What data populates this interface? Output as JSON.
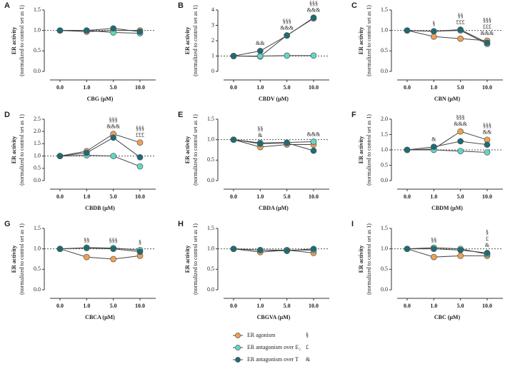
{
  "chart_data": [
    {
      "type": "line",
      "title": "A",
      "ylabel": [
        "ER activity",
        "(normalized to control set as 1)"
      ],
      "xlabel": "CBG (μM)",
      "categories": [
        "0.0",
        "1.0",
        "5.0",
        "10.0"
      ],
      "ylim": [
        0,
        1.5
      ],
      "yticks": [
        {
          "value": 0,
          "label": "0.0"
        },
        {
          "value": 0.5,
          "label": "0.5"
        },
        {
          "value": 1,
          "label": "1.0"
        },
        {
          "value": 1.5,
          "label": "1.5"
        }
      ],
      "refline": 1,
      "series": [
        {
          "name": "ER agonism",
          "symbol": "§",
          "color": "#f0a150",
          "values": [
            1,
            0.97,
            1.0,
            1.0
          ]
        },
        {
          "name": "ER antagonism over E₂",
          "symbol": "£",
          "color": "#5fd9c2",
          "values": [
            1,
            1.0,
            0.95,
            0.93
          ]
        },
        {
          "name": "ER antagonism over T",
          "symbol": "&",
          "color": "#1b6c78",
          "values": [
            1,
            1.0,
            1.05,
            0.97
          ]
        }
      ],
      "annotations": [
        [],
        [],
        [],
        []
      ]
    },
    {
      "type": "line",
      "title": "B",
      "ylabel": [
        "ER activity",
        "(normalized to control set as 1)"
      ],
      "xlabel": "CBDV (μM)",
      "categories": [
        "0.0",
        "1.0",
        "5.0",
        "10.0"
      ],
      "ylim": [
        0,
        4
      ],
      "yticks": [
        0,
        1,
        2,
        3,
        4
      ],
      "refline": 1,
      "series": [
        {
          "color": "#f0a150",
          "values": [
            1,
            0.97,
            2.35,
            3.45
          ]
        },
        {
          "color": "#5fd9c2",
          "values": [
            1,
            1.0,
            1.03,
            1.03
          ]
        },
        {
          "color": "#1b6c78",
          "values": [
            1,
            1.33,
            2.33,
            3.5
          ]
        }
      ],
      "annotations": [
        [],
        [
          "&&"
        ],
        [
          "§§§",
          "&&&"
        ],
        [
          "§§§",
          "&&&"
        ]
      ]
    },
    {
      "type": "line",
      "title": "C",
      "ylabel": [
        "ER activity",
        "(normalized to control set as 1)"
      ],
      "xlabel": "CBN (μM)",
      "categories": [
        "0.0",
        "1.0",
        "5.0",
        "10.0"
      ],
      "ylim": [
        0,
        1.5
      ],
      "yticks": [
        {
          "value": 0,
          "label": "0.0"
        },
        {
          "value": 0.5,
          "label": "0.5"
        },
        {
          "value": 1,
          "label": "1.0"
        },
        {
          "value": 1.5,
          "label": "1.5"
        }
      ],
      "refline": 1,
      "series": [
        {
          "color": "#f0a150",
          "values": [
            1,
            0.85,
            0.8,
            0.75
          ]
        },
        {
          "color": "#5fd9c2",
          "values": [
            1,
            0.98,
            1.0,
            0.67
          ]
        },
        {
          "color": "#1b6c78",
          "values": [
            1,
            0.98,
            1.02,
            0.7
          ]
        }
      ],
      "annotations": [
        [],
        [
          "§"
        ],
        [
          "§§",
          "£££"
        ],
        [
          "§§§",
          "£££",
          "&&&"
        ]
      ]
    },
    {
      "type": "line",
      "title": "D",
      "ylabel": [
        "ER activity",
        "(normalized to control set as 1)"
      ],
      "xlabel": "CBDB (μM)",
      "categories": [
        "0.0",
        "1.0",
        "5.0",
        "10.0"
      ],
      "ylim": [
        0,
        2.5
      ],
      "yticks": [
        {
          "value": 0,
          "label": "0.0"
        },
        {
          "value": 0.5,
          "label": "0.5"
        },
        {
          "value": 1,
          "label": "1.0"
        },
        {
          "value": 1.5,
          "label": "1.5"
        },
        {
          "value": 2,
          "label": "2.0"
        },
        {
          "value": 2.5,
          "label": "2.5"
        }
      ],
      "refline": 1,
      "series": [
        {
          "color": "#f0a150",
          "values": [
            1,
            1.2,
            1.9,
            1.55
          ]
        },
        {
          "color": "#5fd9c2",
          "values": [
            1,
            1.03,
            1.0,
            0.58
          ]
        },
        {
          "color": "#1b6c78",
          "values": [
            1,
            1.13,
            1.75,
            0.95
          ]
        }
      ],
      "annotations": [
        [],
        [],
        [
          "§§§",
          "&&&"
        ],
        [
          "§§§",
          "£££"
        ]
      ]
    },
    {
      "type": "line",
      "title": "E",
      "ylabel": [
        "ER activity",
        "(normalized to control set as 1)"
      ],
      "xlabel": "CBDA (μM)",
      "categories": [
        "0.0",
        "1.0",
        "5.0",
        "10.0"
      ],
      "ylim": [
        0,
        1.5
      ],
      "yticks": [
        {
          "value": 0,
          "label": "0.0"
        },
        {
          "value": 0.5,
          "label": "0.5"
        },
        {
          "value": 1,
          "label": "1.0"
        },
        {
          "value": 1.5,
          "label": "1.5"
        }
      ],
      "refline": 1,
      "series": [
        {
          "color": "#f0a150",
          "values": [
            1,
            0.82,
            0.88,
            0.88
          ]
        },
        {
          "color": "#5fd9c2",
          "values": [
            1,
            0.92,
            0.93,
            0.95
          ]
        },
        {
          "color": "#1b6c78",
          "values": [
            1,
            0.9,
            0.92,
            0.73
          ]
        }
      ],
      "annotations": [
        [],
        [
          "§§",
          "&"
        ],
        [],
        [
          "&&&"
        ]
      ]
    },
    {
      "type": "line",
      "title": "F",
      "ylabel": [
        "ER activity",
        "(normalized to control set as 1)"
      ],
      "xlabel": "CBDM (μM)",
      "categories": [
        "0.0",
        "1.0",
        "5.0",
        "10.0"
      ],
      "ylim": [
        0,
        2
      ],
      "yticks": [
        {
          "value": 0,
          "label": "0.0"
        },
        {
          "value": 0.5,
          "label": "0.5"
        },
        {
          "value": 1,
          "label": "1.0"
        },
        {
          "value": 1.5,
          "label": "1.5"
        },
        {
          "value": 2,
          "label": "2.0"
        }
      ],
      "refline": 1,
      "series": [
        {
          "color": "#f0a150",
          "values": [
            1,
            1.03,
            1.6,
            1.33
          ]
        },
        {
          "color": "#5fd9c2",
          "values": [
            1,
            1.0,
            0.96,
            0.92
          ]
        },
        {
          "color": "#1b6c78",
          "values": [
            1,
            1.1,
            1.28,
            1.17
          ]
        }
      ],
      "annotations": [
        [],
        [
          "&"
        ],
        [
          "§§§",
          "&&&"
        ],
        [
          "§§§",
          "&&"
        ]
      ]
    },
    {
      "type": "line",
      "title": "G",
      "ylabel": [
        "ER activity",
        "(normalized to control set as 1)"
      ],
      "xlabel": "CBCA (μM)",
      "categories": [
        "0.0",
        "1.0",
        "5.0",
        "10.0"
      ],
      "ylim": [
        0,
        1.5
      ],
      "yticks": [
        {
          "value": 0,
          "label": "0.0"
        },
        {
          "value": 0.5,
          "label": "0.5"
        },
        {
          "value": 1,
          "label": "1.0"
        },
        {
          "value": 1.5,
          "label": "1.5"
        }
      ],
      "refline": 1,
      "series": [
        {
          "color": "#f0a150",
          "values": [
            1,
            0.8,
            0.75,
            0.83
          ]
        },
        {
          "color": "#5fd9c2",
          "values": [
            1,
            1.03,
            1.02,
            0.97
          ]
        },
        {
          "color": "#1b6c78",
          "values": [
            1,
            1.02,
            1.0,
            0.93
          ]
        }
      ],
      "annotations": [
        [],
        [
          "§§"
        ],
        [
          "§§§"
        ],
        [
          "§"
        ]
      ]
    },
    {
      "type": "line",
      "title": "H",
      "ylabel": [
        "ER activity",
        "(normalized to control set as 1)"
      ],
      "xlabel": "CBGVA (μM)",
      "categories": [
        "0.0",
        "1.0",
        "5.0",
        "10.0"
      ],
      "ylim": [
        0,
        1.5
      ],
      "yticks": [
        {
          "value": 0,
          "label": "0.0"
        },
        {
          "value": 0.5,
          "label": "0.5"
        },
        {
          "value": 1,
          "label": "1.0"
        },
        {
          "value": 1.5,
          "label": "1.5"
        }
      ],
      "refline": 1,
      "series": [
        {
          "color": "#f0a150",
          "values": [
            1,
            0.92,
            0.97,
            0.9
          ]
        },
        {
          "color": "#5fd9c2",
          "values": [
            1,
            0.97,
            0.97,
            0.97
          ]
        },
        {
          "color": "#1b6c78",
          "values": [
            1,
            0.97,
            0.95,
            1.0
          ]
        }
      ],
      "annotations": [
        [],
        [],
        [],
        []
      ]
    },
    {
      "type": "line",
      "title": "I",
      "ylabel": [
        "ER activity",
        "(normalized to control set as 1)"
      ],
      "xlabel": "CBC (μM)",
      "categories": [
        "0.0",
        "1.0",
        "5.0",
        "10.0"
      ],
      "ylim": [
        0,
        1.5
      ],
      "yticks": [
        {
          "value": 0,
          "label": "0.0"
        },
        {
          "value": 0.5,
          "label": "0.5"
        },
        {
          "value": 1,
          "label": "1.0"
        },
        {
          "value": 1.5,
          "label": "1.5"
        }
      ],
      "refline": 1,
      "series": [
        {
          "color": "#f0a150",
          "values": [
            1,
            0.8,
            0.83,
            0.83
          ]
        },
        {
          "color": "#5fd9c2",
          "values": [
            1,
            1.03,
            1.0,
            0.87
          ]
        },
        {
          "color": "#1b6c78",
          "values": [
            1,
            1.0,
            0.97,
            0.9
          ]
        }
      ],
      "annotations": [
        [],
        [
          "§§"
        ],
        [],
        [
          "§",
          "£",
          "&"
        ]
      ]
    }
  ]
}
